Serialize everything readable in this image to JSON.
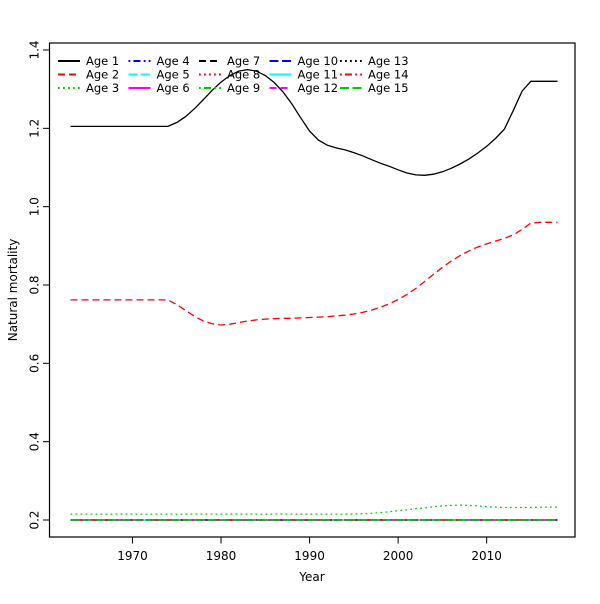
{
  "figure": {
    "background": "#ffffff"
  },
  "chart_data": {
    "type": "line",
    "title": "",
    "xlabel": "Year",
    "ylabel": "Natural mortality",
    "x_min": 1963,
    "x_max": 2018,
    "x_ticks": [
      1970,
      1980,
      1990,
      2000,
      2010
    ],
    "y_ticks": [
      0.2,
      0.4,
      0.6,
      0.8,
      1.0,
      1.2,
      1.4
    ],
    "grid": false,
    "legend": {
      "position": "topleft",
      "columns": 5,
      "rows": 3,
      "border": false
    },
    "palette_note_colors": [
      "#000000",
      "#FF0000",
      "#00CD00",
      "#0000FF",
      "#00FFFF",
      "#FF00FF"
    ],
    "x": [
      1963,
      1964,
      1965,
      1966,
      1967,
      1968,
      1969,
      1970,
      1971,
      1972,
      1973,
      1974,
      1975,
      1976,
      1977,
      1978,
      1979,
      1980,
      1981,
      1982,
      1983,
      1984,
      1985,
      1986,
      1987,
      1988,
      1989,
      1990,
      1991,
      1992,
      1993,
      1994,
      1995,
      1996,
      1997,
      1998,
      1999,
      2000,
      2001,
      2002,
      2003,
      2004,
      2005,
      2006,
      2007,
      2008,
      2009,
      2010,
      2011,
      2012,
      2013,
      2014,
      2015,
      2016,
      2017,
      2018
    ],
    "series": [
      {
        "name": "Age 1",
        "color": "#000000",
        "linetype": "solid",
        "values": [
          1.205,
          1.205,
          1.205,
          1.205,
          1.205,
          1.205,
          1.205,
          1.205,
          1.205,
          1.205,
          1.205,
          1.205,
          1.215,
          1.23,
          1.25,
          1.273,
          1.297,
          1.318,
          1.335,
          1.346,
          1.35,
          1.346,
          1.335,
          1.317,
          1.293,
          1.262,
          1.227,
          1.193,
          1.17,
          1.157,
          1.15,
          1.145,
          1.138,
          1.13,
          1.12,
          1.111,
          1.103,
          1.094,
          1.086,
          1.081,
          1.08,
          1.083,
          1.089,
          1.098,
          1.109,
          1.122,
          1.137,
          1.154,
          1.174,
          1.198,
          1.245,
          1.295,
          1.32,
          1.32,
          1.32,
          1.32
        ]
      },
      {
        "name": "Age 2",
        "color": "#FF0000",
        "linetype": "dashed",
        "values": [
          0.762,
          0.762,
          0.762,
          0.762,
          0.762,
          0.762,
          0.762,
          0.762,
          0.762,
          0.762,
          0.762,
          0.762,
          0.75,
          0.735,
          0.72,
          0.708,
          0.701,
          0.698,
          0.7,
          0.704,
          0.708,
          0.711,
          0.713,
          0.714,
          0.715,
          0.715,
          0.716,
          0.717,
          0.718,
          0.719,
          0.721,
          0.723,
          0.726,
          0.73,
          0.736,
          0.743,
          0.752,
          0.763,
          0.776,
          0.791,
          0.809,
          0.827,
          0.845,
          0.861,
          0.875,
          0.887,
          0.897,
          0.905,
          0.912,
          0.919,
          0.928,
          0.942,
          0.958,
          0.96,
          0.96,
          0.96
        ]
      },
      {
        "name": "Age 3",
        "color": "#00CD00",
        "linetype": "dotted",
        "values": [
          0.215,
          0.215,
          0.215,
          0.215,
          0.215,
          0.215,
          0.215,
          0.215,
          0.215,
          0.215,
          0.215,
          0.215,
          0.215,
          0.215,
          0.215,
          0.215,
          0.215,
          0.215,
          0.215,
          0.215,
          0.215,
          0.215,
          0.215,
          0.215,
          0.215,
          0.215,
          0.215,
          0.215,
          0.215,
          0.215,
          0.215,
          0.215,
          0.215,
          0.216,
          0.217,
          0.219,
          0.221,
          0.224,
          0.226,
          0.229,
          0.231,
          0.234,
          0.236,
          0.237,
          0.238,
          0.237,
          0.236,
          0.234,
          0.233,
          0.232,
          0.232,
          0.232,
          0.232,
          0.233,
          0.233,
          0.233
        ]
      },
      {
        "name": "Age 4",
        "color": "#0000FF",
        "linetype": "dotdash",
        "values": 0.2
      },
      {
        "name": "Age 5",
        "color": "#00FFFF",
        "linetype": "longdash",
        "values": 0.2
      },
      {
        "name": "Age 6",
        "color": "#FF00FF",
        "linetype": "solid",
        "values": 0.2
      },
      {
        "name": "Age 7",
        "color": "#000000",
        "linetype": "dashed",
        "values": 0.2
      },
      {
        "name": "Age 8",
        "color": "#FF0000",
        "linetype": "dotted",
        "values": 0.2
      },
      {
        "name": "Age 9",
        "color": "#00CD00",
        "linetype": "dotdash",
        "values": 0.2
      },
      {
        "name": "Age 10",
        "color": "#0000FF",
        "linetype": "longdash",
        "values": 0.2
      },
      {
        "name": "Age 11",
        "color": "#00FFFF",
        "linetype": "solid",
        "values": 0.2
      },
      {
        "name": "Age 12",
        "color": "#FF00FF",
        "linetype": "dashed",
        "values": 0.2
      },
      {
        "name": "Age 13",
        "color": "#000000",
        "linetype": "dotted",
        "values": 0.2
      },
      {
        "name": "Age 14",
        "color": "#FF0000",
        "linetype": "dotdash",
        "values": 0.2
      },
      {
        "name": "Age 15",
        "color": "#00CD00",
        "linetype": "longdash",
        "values": 0.2
      }
    ]
  }
}
